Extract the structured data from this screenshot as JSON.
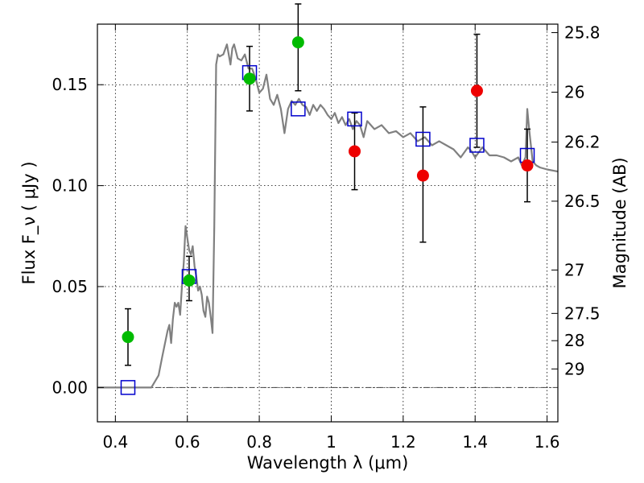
{
  "chart_data": {
    "type": "scatter",
    "xlabel": "Wavelength  λ (μm)",
    "ylabel": "Flux  F_ν  ( μJy )",
    "ylabel_right": "Magnitude (AB)",
    "xlim": [
      0.35,
      1.63
    ],
    "ylim": [
      -0.017,
      0.18
    ],
    "x_ticks": [
      0.4,
      0.6,
      0.8,
      1.0,
      1.2,
      1.4,
      1.6
    ],
    "x_tick_labels": [
      "0.4",
      "0.6",
      "0.8",
      "1",
      "1.2",
      "1.4",
      "1.6"
    ],
    "y_ticks": [
      0.0,
      0.05,
      0.1,
      0.15
    ],
    "y_tick_labels": [
      "0.00",
      "0.05",
      "0.10",
      "0.15"
    ],
    "right_ticks": [
      {
        "label": "25.8",
        "flux": 0.1758
      },
      {
        "label": "26",
        "flux": 0.1463
      },
      {
        "label": "26.2",
        "flux": 0.1216
      },
      {
        "label": "26.5",
        "flux": 0.0923
      },
      {
        "label": "27",
        "flux": 0.0582
      },
      {
        "label": "27.5",
        "flux": 0.0367
      },
      {
        "label": "28",
        "flux": 0.0232
      },
      {
        "label": "29",
        "flux": 0.0092
      }
    ],
    "grid": true,
    "colors": {
      "model": "#808080",
      "green": "#00bb00",
      "red": "#ee0000",
      "squares": "#0000cc",
      "errorbar": "#000000",
      "zero_line": "#444444"
    },
    "model_sed": {
      "x": [
        0.35,
        0.5,
        0.52,
        0.53,
        0.545,
        0.55,
        0.555,
        0.56,
        0.565,
        0.57,
        0.575,
        0.58,
        0.585,
        0.59,
        0.595,
        0.6,
        0.605,
        0.61,
        0.615,
        0.62,
        0.625,
        0.63,
        0.635,
        0.64,
        0.645,
        0.65,
        0.655,
        0.66,
        0.665,
        0.67,
        0.675,
        0.68,
        0.685,
        0.69,
        0.7,
        0.71,
        0.72,
        0.725,
        0.73,
        0.74,
        0.75,
        0.76,
        0.77,
        0.78,
        0.79,
        0.8,
        0.81,
        0.82,
        0.83,
        0.84,
        0.85,
        0.86,
        0.87,
        0.88,
        0.89,
        0.9,
        0.91,
        0.92,
        0.93,
        0.94,
        0.95,
        0.96,
        0.97,
        0.98,
        0.99,
        1.0,
        1.01,
        1.02,
        1.03,
        1.04,
        1.05,
        1.06,
        1.07,
        1.08,
        1.09,
        1.1,
        1.12,
        1.14,
        1.16,
        1.18,
        1.2,
        1.22,
        1.24,
        1.26,
        1.28,
        1.3,
        1.32,
        1.34,
        1.36,
        1.38,
        1.39,
        1.4,
        1.42,
        1.44,
        1.46,
        1.48,
        1.5,
        1.52,
        1.53,
        1.54,
        1.545,
        1.55,
        1.56,
        1.57,
        1.58,
        1.6,
        1.63
      ],
      "y": [
        0.0,
        0.0,
        0.006,
        0.015,
        0.028,
        0.031,
        0.022,
        0.034,
        0.042,
        0.04,
        0.042,
        0.036,
        0.05,
        0.062,
        0.08,
        0.074,
        0.068,
        0.066,
        0.07,
        0.06,
        0.055,
        0.048,
        0.05,
        0.046,
        0.038,
        0.035,
        0.045,
        0.042,
        0.035,
        0.027,
        0.08,
        0.16,
        0.165,
        0.164,
        0.165,
        0.17,
        0.16,
        0.168,
        0.17,
        0.163,
        0.162,
        0.165,
        0.158,
        0.158,
        0.153,
        0.146,
        0.148,
        0.155,
        0.143,
        0.14,
        0.145,
        0.138,
        0.126,
        0.138,
        0.142,
        0.14,
        0.143,
        0.14,
        0.139,
        0.135,
        0.14,
        0.137,
        0.14,
        0.138,
        0.135,
        0.133,
        0.136,
        0.131,
        0.134,
        0.13,
        0.133,
        0.128,
        0.132,
        0.13,
        0.124,
        0.132,
        0.128,
        0.13,
        0.126,
        0.127,
        0.124,
        0.126,
        0.122,
        0.124,
        0.12,
        0.122,
        0.12,
        0.118,
        0.114,
        0.119,
        0.117,
        0.114,
        0.119,
        0.115,
        0.115,
        0.114,
        0.112,
        0.114,
        0.11,
        0.114,
        0.138,
        0.128,
        0.112,
        0.11,
        0.109,
        0.108,
        0.107
      ]
    },
    "model_points": {
      "name": "model",
      "x": [
        0.435,
        0.605,
        0.773,
        0.908,
        1.065,
        1.255,
        1.405,
        1.545
      ],
      "y": [
        0.0,
        0.055,
        0.156,
        0.138,
        0.133,
        0.123,
        0.12,
        0.115
      ]
    },
    "green_points": {
      "x": [
        0.435,
        0.605,
        0.773,
        0.908
      ],
      "y": [
        0.025,
        0.053,
        0.153,
        0.171
      ],
      "err_low": [
        0.011,
        0.043,
        0.137,
        0.147
      ],
      "err_high": [
        0.039,
        0.065,
        0.169,
        0.19
      ]
    },
    "red_points": {
      "x": [
        1.065,
        1.255,
        1.405,
        1.545
      ],
      "y": [
        0.117,
        0.105,
        0.147,
        0.11
      ],
      "err_low": [
        0.098,
        0.072,
        0.119,
        0.092
      ],
      "err_high": [
        0.136,
        0.139,
        0.175,
        0.128
      ]
    }
  }
}
